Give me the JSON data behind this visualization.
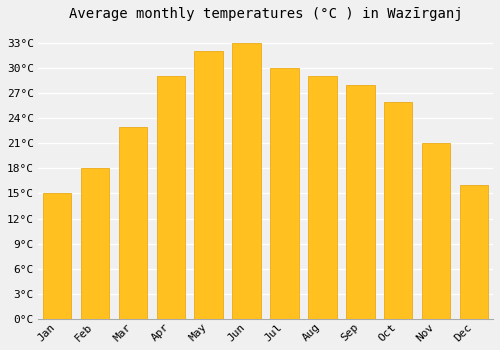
{
  "title": "Average monthly temperatures (°C ) in Wazīrganj",
  "months": [
    "Jan",
    "Feb",
    "Mar",
    "Apr",
    "May",
    "Jun",
    "Jul",
    "Aug",
    "Sep",
    "Oct",
    "Nov",
    "Dec"
  ],
  "values": [
    15,
    18,
    23,
    29,
    32,
    33,
    30,
    29,
    28,
    26,
    21,
    16
  ],
  "bar_color_top": "#FFC020",
  "bar_color_bottom": "#FFB000",
  "bar_edge_color": "#E8A000",
  "ylim": [
    0,
    35
  ],
  "yticks": [
    0,
    3,
    6,
    9,
    12,
    15,
    18,
    21,
    24,
    27,
    30,
    33
  ],
  "background_color": "#f0f0f0",
  "plot_bg_color": "#f0f0f0",
  "grid_color": "#ffffff",
  "title_fontsize": 10,
  "tick_fontsize": 8,
  "bar_width": 0.75
}
